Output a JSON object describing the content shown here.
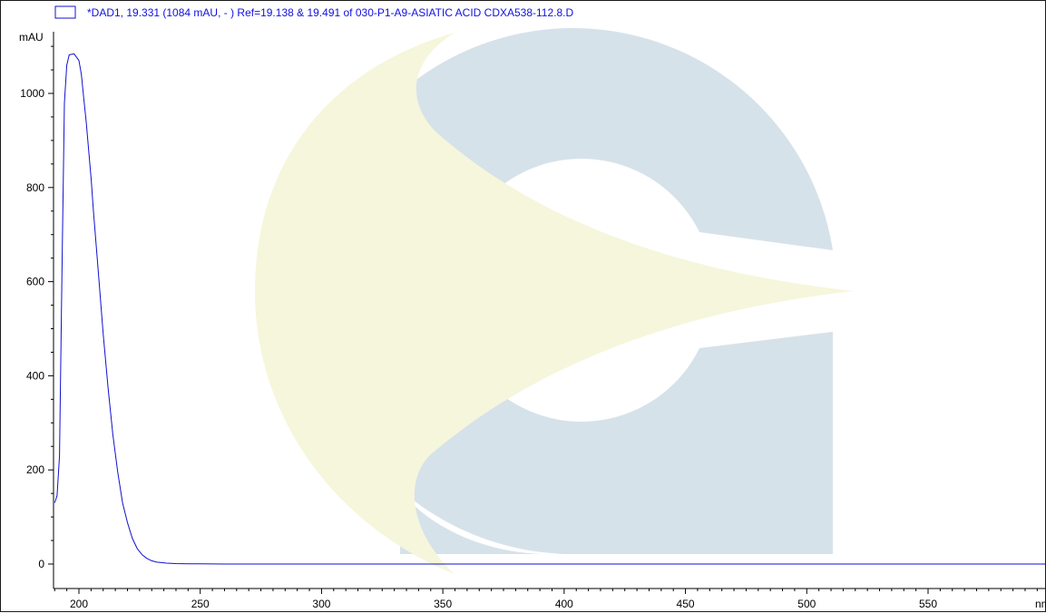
{
  "chart_data": {
    "type": "line",
    "legend_text": "*DAD1, 19.331 (1084 mAU, - ) Ref=19.138 & 19.491 of 030-P1-A9-ASIATIC ACID CDXA538-112.8.D",
    "ylabel": "mAU",
    "xlabel_unit": "nm",
    "xlim": [
      190,
      1151
    ],
    "ylim": [
      -50,
      1150
    ],
    "x_ticks": [
      200,
      250,
      300,
      350,
      400,
      450,
      500,
      550
    ],
    "y_ticks": [
      0,
      200,
      400,
      600,
      800,
      1000
    ],
    "x_tick_labels": [
      "200",
      "250",
      "300",
      "350",
      "400",
      "450",
      "500",
      "550"
    ],
    "y_tick_labels": [
      "0",
      "200",
      "400",
      "600",
      "800",
      "1000"
    ],
    "x_minor_step": 5,
    "y_minor_step": 50,
    "legend_position": "top-left",
    "grid": false,
    "series": [
      {
        "color": "#1010d0",
        "x": [
          190,
          191,
          192,
          193,
          194,
          195,
          196,
          198,
          200,
          201,
          202,
          203,
          204,
          205,
          206,
          208,
          210,
          212,
          214,
          216,
          218,
          220,
          222,
          224,
          226,
          228,
          230,
          232,
          234,
          236,
          238,
          240,
          245,
          250,
          260,
          270,
          300,
          350,
          400,
          450,
          500,
          550,
          600
        ],
        "y": [
          130,
          145,
          230,
          620,
          980,
          1060,
          1082,
          1084,
          1070,
          1040,
          990,
          940,
          880,
          820,
          750,
          620,
          490,
          375,
          275,
          195,
          130,
          88,
          55,
          33,
          20,
          12,
          7,
          4,
          3,
          2,
          1.5,
          1,
          0.5,
          0.3,
          0,
          0,
          0,
          0,
          0,
          0,
          0,
          0,
          0
        ]
      }
    ]
  },
  "watermark": {
    "colors": {
      "blue": "#d6e2ea",
      "yellow": "#f6f6dc"
    }
  }
}
